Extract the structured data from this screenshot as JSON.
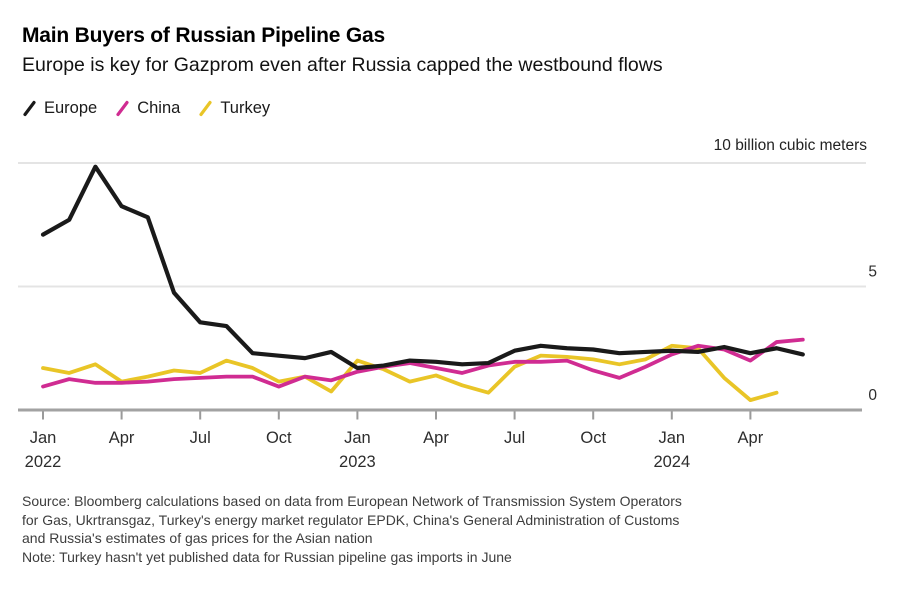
{
  "header": {
    "title": "Main Buyers of Russian Pipeline Gas",
    "subtitle": "Europe is key for Gazprom even after Russia capped the westbound flows"
  },
  "legend": {
    "items": [
      {
        "label": "Europe",
        "color": "#1a1a1a"
      },
      {
        "label": "China",
        "color": "#d02c92"
      },
      {
        "label": "Turkey",
        "color": "#e9c527"
      }
    ]
  },
  "chart_data": {
    "type": "line",
    "unit_label": "10 billion cubic meters",
    "ylabel": "billion cubic meters",
    "ylim": [
      0,
      10
    ],
    "grid_values": [
      5,
      10
    ],
    "ytick_labels": [
      {
        "value": 0,
        "label": "0"
      },
      {
        "value": 5,
        "label": "5"
      }
    ],
    "x": [
      "Jan 2022",
      "Feb 2022",
      "Mar 2022",
      "Apr 2022",
      "May 2022",
      "Jun 2022",
      "Jul 2022",
      "Aug 2022",
      "Sep 2022",
      "Oct 2022",
      "Nov 2022",
      "Dec 2022",
      "Jan 2023",
      "Feb 2023",
      "Mar 2023",
      "Apr 2023",
      "May 2023",
      "Jun 2023",
      "Jul 2023",
      "Aug 2023",
      "Sep 2023",
      "Oct 2023",
      "Nov 2023",
      "Dec 2023",
      "Jan 2024",
      "Feb 2024",
      "Mar 2024",
      "Apr 2024",
      "May 2024",
      "Jun 2024"
    ],
    "x_axis_ticks": [
      {
        "label": "Jan",
        "year": "2022",
        "month_index": 0
      },
      {
        "label": "Apr",
        "year": "",
        "month_index": 3
      },
      {
        "label": "Jul",
        "year": "",
        "month_index": 6
      },
      {
        "label": "Oct",
        "year": "",
        "month_index": 9
      },
      {
        "label": "Jan",
        "year": "2023",
        "month_index": 12
      },
      {
        "label": "Apr",
        "year": "",
        "month_index": 15
      },
      {
        "label": "Jul",
        "year": "",
        "month_index": 18
      },
      {
        "label": "Oct",
        "year": "",
        "month_index": 21
      },
      {
        "label": "Jan",
        "year": "2024",
        "month_index": 24
      },
      {
        "label": "Apr",
        "year": "",
        "month_index": 27
      }
    ],
    "series": [
      {
        "name": "Europe",
        "color": "#1a1a1a",
        "values": [
          7.1,
          7.7,
          9.85,
          8.25,
          7.8,
          4.75,
          3.55,
          3.4,
          2.3,
          2.2,
          2.1,
          2.35,
          1.7,
          1.8,
          2.0,
          1.95,
          1.85,
          1.9,
          2.4,
          2.6,
          2.5,
          2.45,
          2.3,
          2.35,
          2.4,
          2.35,
          2.55,
          2.3,
          2.5,
          2.25
        ]
      },
      {
        "name": "China",
        "color": "#d02c92",
        "values": [
          0.95,
          1.25,
          1.1,
          1.1,
          1.15,
          1.25,
          1.3,
          1.35,
          1.35,
          0.95,
          1.35,
          1.2,
          1.55,
          1.75,
          1.9,
          1.7,
          1.5,
          1.8,
          1.95,
          1.95,
          2.0,
          1.6,
          1.3,
          1.75,
          2.25,
          2.6,
          2.45,
          2.0,
          2.75,
          2.85
        ]
      },
      {
        "name": "Turkey",
        "color": "#e9c527",
        "values": [
          1.7,
          1.5,
          1.85,
          1.15,
          1.35,
          1.6,
          1.5,
          2.0,
          1.7,
          1.15,
          1.35,
          0.75,
          2.0,
          1.65,
          1.15,
          1.4,
          1.0,
          0.7,
          1.75,
          2.2,
          2.15,
          2.05,
          1.85,
          2.05,
          2.6,
          2.5,
          1.3,
          0.4,
          0.7
        ]
      }
    ]
  },
  "footer": {
    "source_lines": [
      "Source: Bloomberg calculations based on data from European Network of Transmission System Operators",
      "for Gas, Ukrtransgaz, Turkey's energy market regulator EPDK, China's General Administration of Customs",
      "and Russia's estimates of gas prices for the Asian nation"
    ],
    "note": "Note: Turkey hasn't yet published data for Russian pipeline gas imports in June"
  }
}
